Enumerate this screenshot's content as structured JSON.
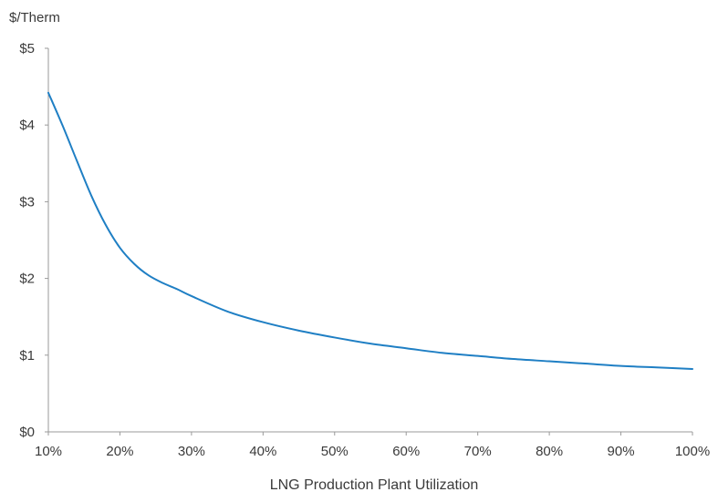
{
  "chart_data": {
    "type": "line",
    "ylabel": "$/Therm",
    "xlabel": "LNG Production Plant Utilization",
    "x_ticks": [
      "10%",
      "20%",
      "30%",
      "40%",
      "50%",
      "60%",
      "70%",
      "80%",
      "90%",
      "100%"
    ],
    "y_ticks": [
      "$0",
      "$1",
      "$2",
      "$3",
      "$4",
      "$5"
    ],
    "xlim": [
      10,
      100
    ],
    "ylim": [
      0,
      5
    ],
    "grid": false,
    "series": [
      {
        "color": "#1f7fc4",
        "x": [
          10,
          12,
          14,
          16,
          18,
          20,
          22,
          24,
          26,
          28,
          30,
          35,
          40,
          45,
          50,
          55,
          60,
          65,
          70,
          75,
          80,
          85,
          90,
          95,
          100
        ],
        "y": [
          4.42,
          3.99,
          3.53,
          3.08,
          2.7,
          2.4,
          2.19,
          2.04,
          1.94,
          1.86,
          1.77,
          1.57,
          1.43,
          1.32,
          1.23,
          1.15,
          1.09,
          1.03,
          0.99,
          0.95,
          0.92,
          0.89,
          0.86,
          0.84,
          0.82
        ]
      }
    ]
  }
}
